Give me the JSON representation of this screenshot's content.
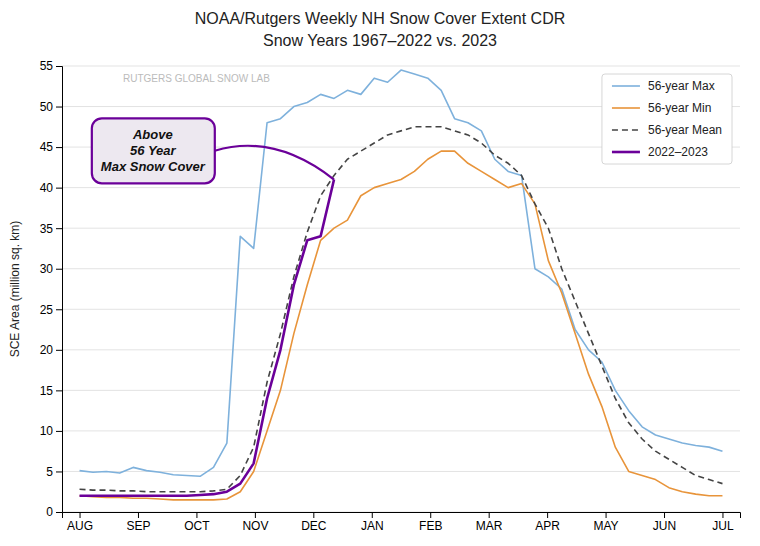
{
  "chart_data": {
    "type": "line",
    "title": "NOAA/Rutgers Weekly NH Snow Cover Extent CDR",
    "subtitle": "Snow Years 1967–2022 vs. 2023",
    "ylabel": "SCE Area (million sq. km)",
    "watermark": "RUTGERS GLOBAL SNOW LAB",
    "annotation": "Above\n56 Year\nMax Snow Cover",
    "x": [
      0,
      0.229167,
      0.458333,
      0.6875,
      0.916667,
      1.145833,
      1.375,
      1.604167,
      1.833333,
      2.0625,
      2.291667,
      2.520833,
      2.75,
      2.979167,
      3.208333,
      3.4375,
      3.666667,
      3.895833,
      4.125,
      4.354167,
      4.583333,
      4.8125,
      5.041667,
      5.270833,
      5.5,
      5.729167,
      5.958333,
      6.1875,
      6.416667,
      6.645833,
      6.875,
      7.104167,
      7.333333,
      7.5625,
      7.791667,
      8.020833,
      8.25,
      8.479167,
      8.708333,
      8.9375,
      9.166667,
      9.395833,
      9.625,
      9.854167,
      10.083333,
      10.3125,
      10.541667,
      10.770833,
      11
    ],
    "xlim": [
      -0.3,
      11.3
    ],
    "xticks": [
      {
        "value": 0,
        "label": "AUG"
      },
      {
        "value": 1,
        "label": "SEP"
      },
      {
        "value": 2,
        "label": "OCT"
      },
      {
        "value": 3,
        "label": "NOV"
      },
      {
        "value": 4,
        "label": "DEC"
      },
      {
        "value": 5,
        "label": "JAN"
      },
      {
        "value": 6,
        "label": "FEB"
      },
      {
        "value": 7,
        "label": "MAR"
      },
      {
        "value": 8,
        "label": "APR"
      },
      {
        "value": 9,
        "label": "MAY"
      },
      {
        "value": 10,
        "label": "JUN"
      },
      {
        "value": 11,
        "label": "JUL"
      }
    ],
    "ylim": [
      0,
      55
    ],
    "yticks": [
      0,
      5,
      10,
      15,
      20,
      25,
      30,
      35,
      40,
      45,
      50,
      55
    ],
    "grid": true,
    "legend": "upper right",
    "series": [
      {
        "name": "56-year Max",
        "color": "#7EB1DC",
        "line_style": "solid",
        "values": [
          5.1,
          4.9,
          5.0,
          4.8,
          5.5,
          5.1,
          4.9,
          4.6,
          4.5,
          4.4,
          5.5,
          8.5,
          34.0,
          32.5,
          48.0,
          48.5,
          50.0,
          50.5,
          51.5,
          51.0,
          52.0,
          51.5,
          53.5,
          53.0,
          54.5,
          54.0,
          53.5,
          52.0,
          48.5,
          48.0,
          47.0,
          43.5,
          42.0,
          41.5,
          30.0,
          29.0,
          27.5,
          22.5,
          20.0,
          18.5,
          15.0,
          12.5,
          10.5,
          9.5,
          9.0,
          8.5,
          8.2,
          8.0,
          7.5
        ]
      },
      {
        "name": "56-year Min",
        "color": "#E8943A",
        "line_style": "solid",
        "values": [
          2.0,
          1.9,
          1.8,
          1.8,
          1.7,
          1.7,
          1.6,
          1.5,
          1.5,
          1.5,
          1.5,
          1.6,
          2.5,
          5.0,
          10.0,
          15.0,
          22.0,
          28.0,
          33.5,
          35.0,
          36.0,
          39.0,
          40.0,
          40.5,
          41.0,
          42.0,
          43.5,
          44.5,
          44.5,
          43.0,
          42.0,
          41.0,
          40.0,
          40.5,
          38.0,
          31.0,
          27.0,
          22.0,
          17.0,
          13.0,
          8.0,
          5.0,
          4.5,
          4.0,
          3.0,
          2.5,
          2.2,
          2.0,
          2.0
        ]
      },
      {
        "name": "56-year Mean",
        "color": "#444444",
        "line_style": "dashed",
        "values": [
          2.8,
          2.7,
          2.7,
          2.6,
          2.6,
          2.5,
          2.5,
          2.5,
          2.5,
          2.5,
          2.6,
          2.8,
          4.5,
          8.0,
          16.0,
          22.0,
          29.0,
          34.5,
          39.0,
          41.5,
          43.5,
          44.5,
          45.5,
          46.5,
          47.0,
          47.5,
          47.5,
          47.5,
          47.0,
          46.5,
          45.5,
          44.0,
          43.0,
          41.5,
          38.0,
          35.0,
          30.0,
          26.0,
          22.0,
          18.0,
          14.0,
          11.0,
          9.0,
          7.5,
          6.5,
          5.5,
          4.5,
          4.0,
          3.5
        ]
      },
      {
        "name": "2022–2023",
        "color": "#6B0099",
        "line_style": "solid",
        "values": [
          2.0,
          2.0,
          2.0,
          2.0,
          2.0,
          2.0,
          2.0,
          2.0,
          2.0,
          2.1,
          2.2,
          2.5,
          3.5,
          6.0,
          14.0,
          20.0,
          28.0,
          33.5,
          34.0,
          41.0,
          null,
          null,
          null,
          null,
          null,
          null,
          null,
          null,
          null,
          null,
          null,
          null,
          null,
          null,
          null,
          null,
          null,
          null,
          null,
          null,
          null,
          null,
          null,
          null,
          null,
          null,
          null,
          null,
          null
        ]
      }
    ]
  }
}
